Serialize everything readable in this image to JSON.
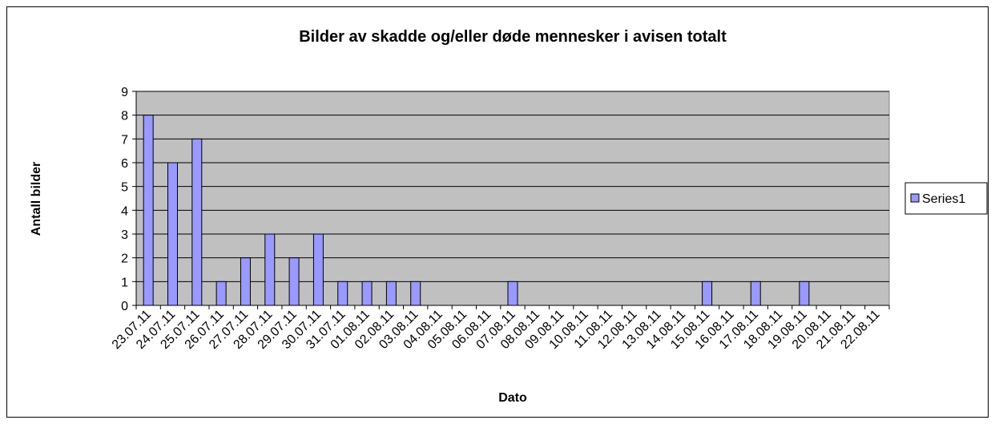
{
  "chart_data": {
    "type": "bar",
    "title": "Bilder av skadde og/eller døde mennesker i avisen totalt",
    "x_label": "Dato",
    "y_label": "Antall bilder",
    "categories": [
      "23.07.11",
      "24.07.11",
      "25.07.11",
      "26.07.11",
      "27.07.11",
      "28.07.11",
      "29.07.11",
      "30.07.11",
      "31.07.11",
      "01.08.11",
      "02.08.11",
      "03.08.11",
      "04.08.11",
      "05.08.11",
      "06.08.11",
      "07.08.11",
      "08.08.11",
      "09.08.11",
      "10.08.11",
      "11.08.11",
      "12.08.11",
      "13.08.11",
      "14.08.11",
      "15.08.11",
      "16.08.11",
      "17.08.11",
      "18.08.11",
      "19.08.11",
      "20.08.11",
      "21.08.11",
      "22.08.11"
    ],
    "series": [
      {
        "name": "Series1",
        "color": "#9999ff",
        "values": [
          8,
          6,
          7,
          1,
          2,
          3,
          2,
          3,
          1,
          1,
          1,
          1,
          0,
          0,
          0,
          1,
          0,
          0,
          0,
          0,
          0,
          0,
          0,
          1,
          0,
          1,
          0,
          1,
          0,
          0,
          0
        ]
      }
    ],
    "ylim": [
      0,
      9
    ],
    "yticks": [
      0,
      1,
      2,
      3,
      4,
      5,
      6,
      7,
      8,
      9
    ],
    "grid": true,
    "legend": "right"
  }
}
